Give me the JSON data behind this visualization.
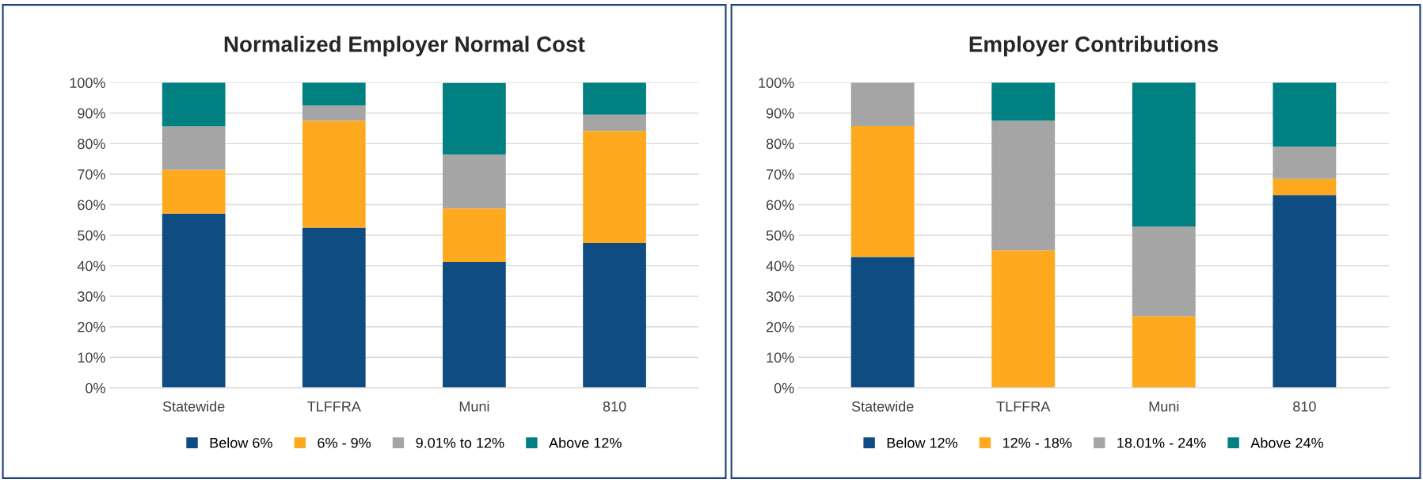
{
  "chart_data": [
    {
      "type": "bar",
      "title": "Normalized Employer Normal Cost",
      "stacked": true,
      "categories": [
        "Statewide",
        "TLFFRA",
        "Muni",
        "810"
      ],
      "series": [
        {
          "name": "Below 6%",
          "color": "#0f4c81",
          "values": [
            57.1,
            52.5,
            41.2,
            47.4
          ]
        },
        {
          "name": "6% - 9%",
          "color": "#ffa91f",
          "values": [
            14.3,
            35,
            17.6,
            36.8
          ]
        },
        {
          "name": "9.01% to 12%",
          "color": "#a5a5a5",
          "values": [
            14.3,
            5,
            17.6,
            5.3
          ]
        },
        {
          "name": "Above 12%",
          "color": "#008080",
          "values": [
            14.3,
            7.5,
            23.5,
            10.5
          ]
        }
      ],
      "ylim": [
        0,
        100
      ],
      "yticks": [
        {
          "value": 0,
          "label": "0%"
        },
        {
          "value": 10,
          "label": "10%"
        },
        {
          "value": 20,
          "label": "20%"
        },
        {
          "value": 30,
          "label": "30%"
        },
        {
          "value": 40,
          "label": "40%"
        },
        {
          "value": 50,
          "label": "50%"
        },
        {
          "value": 60,
          "label": "60%"
        },
        {
          "value": 70,
          "label": "70%"
        },
        {
          "value": 80,
          "label": "80%"
        },
        {
          "value": 90,
          "label": "90%"
        },
        {
          "value": 100,
          "label": "100%"
        }
      ],
      "grid": "y",
      "legend": "bottom"
    },
    {
      "type": "bar",
      "title": "Employer Contributions",
      "stacked": true,
      "categories": [
        "Statewide",
        "TLFFRA",
        "Muni",
        "810"
      ],
      "series": [
        {
          "name": "Below 12%",
          "color": "#0f4c81",
          "values": [
            42.9,
            0,
            0,
            63.2
          ]
        },
        {
          "name": "12% - 18%",
          "color": "#ffa91f",
          "values": [
            42.9,
            45,
            23.5,
            5.3
          ]
        },
        {
          "name": "18.01% - 24%",
          "color": "#a5a5a5",
          "values": [
            14.2,
            42.5,
            29.4,
            10.5
          ]
        },
        {
          "name": "Above 24%",
          "color": "#008080",
          "values": [
            0,
            12.5,
            47.1,
            21
          ]
        }
      ],
      "ylim": [
        0,
        100
      ],
      "yticks": [
        {
          "value": 0,
          "label": "0%"
        },
        {
          "value": 10,
          "label": "10%"
        },
        {
          "value": 20,
          "label": "20%"
        },
        {
          "value": 30,
          "label": "30%"
        },
        {
          "value": 40,
          "label": "40%"
        },
        {
          "value": 50,
          "label": "50%"
        },
        {
          "value": 60,
          "label": "60%"
        },
        {
          "value": 70,
          "label": "70%"
        },
        {
          "value": 80,
          "label": "80%"
        },
        {
          "value": 90,
          "label": "90%"
        },
        {
          "value": 100,
          "label": "100%"
        }
      ],
      "grid": "y",
      "legend": "bottom"
    }
  ]
}
